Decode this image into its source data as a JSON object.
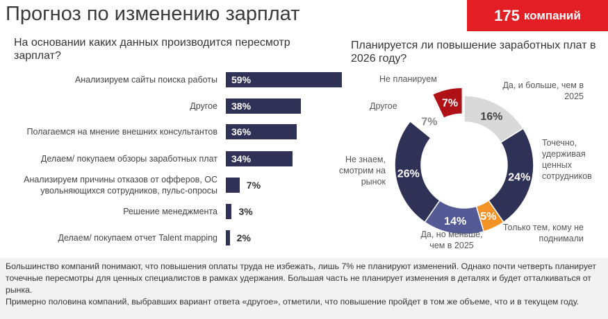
{
  "header": {
    "title": "Прогноз по изменению зарплат",
    "badge_number": "175",
    "badge_text": "компаний"
  },
  "chart_data": [
    {
      "type": "bar",
      "orientation": "horizontal",
      "title": "На основании каких данных производится пересмотр зарплат?",
      "categories": [
        "Анализируем сайты поиска работы",
        "Другое",
        "Полагаемся на мнение внешних консультантов",
        "Делаем/ покупаем обзоры заработных плат",
        "Анализируем причины отказов от офферов, ОС увольняющихся сотрудников, пульс-опросы",
        "Решение менеджмента",
        "Делаем/ покупаем отчет Talent mapping"
      ],
      "values": [
        59,
        38,
        36,
        34,
        7,
        3,
        2
      ],
      "labels": [
        "59%",
        "38%",
        "36%",
        "34%",
        "7%",
        "3%",
        "2%"
      ],
      "unit": "%",
      "color": "#2f3256"
    },
    {
      "type": "pie",
      "variant": "donut",
      "title": "Планируется ли повышение заработных плат в 2026 году?",
      "categories": [
        "Да, и больше, чем в 2025",
        "Точечно, удерживая ценных сотрудников",
        "Только тем, кому не поднимали",
        "Да, но меньше, чем в 2025",
        "Не знаем, смотрим на рынок",
        "Другое",
        "Не планируем"
      ],
      "values": [
        16,
        24,
        5,
        14,
        26,
        7,
        7
      ],
      "labels": [
        "16%",
        "24%",
        "5%",
        "14%",
        "26%",
        "7%",
        "7%"
      ],
      "colors": [
        "#d9d9d9",
        "#2f3256",
        "#f39325",
        "#535a96",
        "#2f3256",
        "#ffffff",
        "#b01116"
      ],
      "label_colors": [
        "#444444",
        "#ffffff",
        "#ffffff",
        "#ffffff",
        "#ffffff",
        "#888888",
        "#ffffff"
      ]
    }
  ],
  "footer": {
    "p1": "Большинство компаний понимают, что повышения оплаты труда не избежать, лишь 7% не планируют изменений. Однако почти четверть планирует точечные пересмотры для ценных специалистов в рамках удержания. Большая часть не планирует изменения в деталях и будет отталкиваться от рынка.",
    "p2": "Примерно половина компаний, выбравших вариант ответа «другое», отметили, что повышение пройдет в том же объеме, что и в текущем году."
  }
}
